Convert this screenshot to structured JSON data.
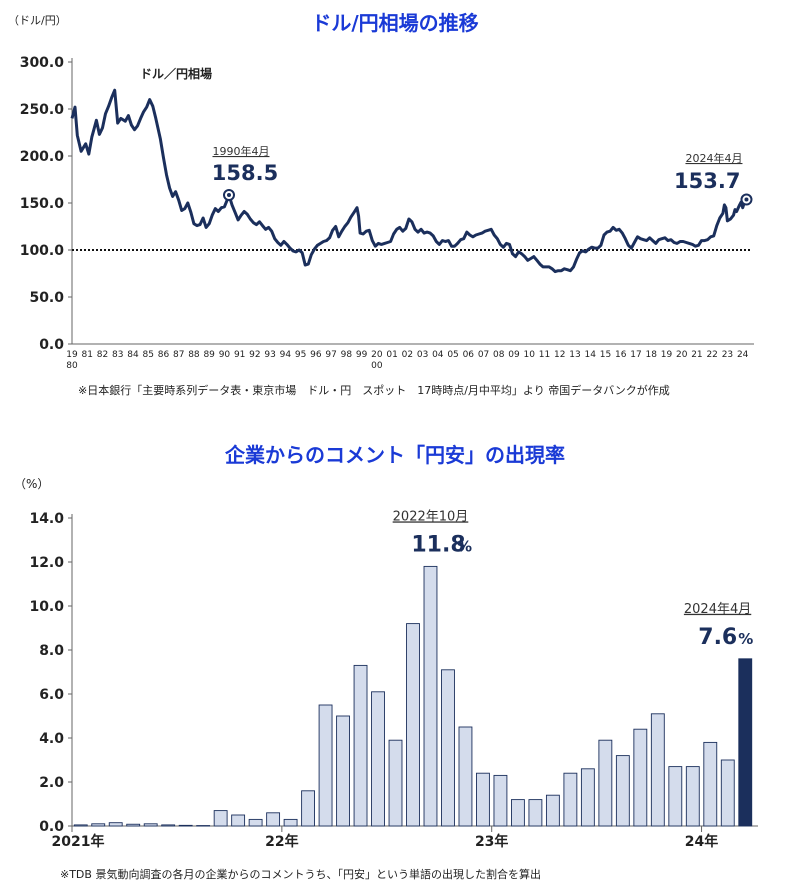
{
  "chart_data": [
    {
      "type": "line",
      "title": "ドル/円相場の推移",
      "ylabel": "（ドル/円）",
      "ylim": [
        0,
        300
      ],
      "yticks": [
        "300.0",
        "250.0",
        "200.0",
        "150.0",
        "100.0",
        "50.0",
        "0.0"
      ],
      "ytick_values": [
        300,
        250,
        200,
        150,
        100,
        50,
        0
      ],
      "xlim": [
        1980,
        2024.35
      ],
      "xticks": [
        "19\n80",
        "81",
        "82",
        "83",
        "84",
        "85",
        "86",
        "87",
        "88",
        "89",
        "90",
        "91",
        "92",
        "93",
        "94",
        "95",
        "96",
        "97",
        "98",
        "99",
        "20\n00",
        "01",
        "02",
        "03",
        "04",
        "05",
        "06",
        "07",
        "08",
        "09",
        "10",
        "11",
        "12",
        "13",
        "14",
        "15",
        "16",
        "17",
        "18",
        "19",
        "20",
        "21",
        "22",
        "23",
        "24"
      ],
      "series_label": "ドル／円相場",
      "reference_line": 100,
      "points": [
        [
          1980.0,
          240
        ],
        [
          1980.2,
          252
        ],
        [
          1980.35,
          222
        ],
        [
          1980.6,
          205
        ],
        [
          1980.9,
          213
        ],
        [
          1981.1,
          202
        ],
        [
          1981.3,
          220
        ],
        [
          1981.6,
          238
        ],
        [
          1981.8,
          223
        ],
        [
          1982.0,
          230
        ],
        [
          1982.2,
          245
        ],
        [
          1982.4,
          253
        ],
        [
          1982.6,
          262
        ],
        [
          1982.8,
          270
        ],
        [
          1983.0,
          235
        ],
        [
          1983.2,
          240
        ],
        [
          1983.5,
          237
        ],
        [
          1983.7,
          243
        ],
        [
          1983.9,
          233
        ],
        [
          1984.1,
          228
        ],
        [
          1984.3,
          232
        ],
        [
          1984.5,
          240
        ],
        [
          1984.7,
          247
        ],
        [
          1984.9,
          252
        ],
        [
          1985.1,
          260
        ],
        [
          1985.3,
          253
        ],
        [
          1985.5,
          240
        ],
        [
          1985.8,
          218
        ],
        [
          1986.0,
          198
        ],
        [
          1986.2,
          180
        ],
        [
          1986.4,
          166
        ],
        [
          1986.6,
          157
        ],
        [
          1986.8,
          162
        ],
        [
          1987.0,
          153
        ],
        [
          1987.2,
          142
        ],
        [
          1987.4,
          144
        ],
        [
          1987.6,
          150
        ],
        [
          1987.8,
          140
        ],
        [
          1988.0,
          128
        ],
        [
          1988.2,
          126
        ],
        [
          1988.4,
          127
        ],
        [
          1988.6,
          134
        ],
        [
          1988.8,
          124
        ],
        [
          1989.0,
          128
        ],
        [
          1989.2,
          137
        ],
        [
          1989.4,
          144
        ],
        [
          1989.6,
          141
        ],
        [
          1989.8,
          145
        ],
        [
          1990.0,
          146
        ],
        [
          1990.2,
          154
        ],
        [
          1990.3,
          158.5
        ],
        [
          1990.5,
          148
        ],
        [
          1990.7,
          140
        ],
        [
          1990.9,
          132
        ],
        [
          1991.1,
          137
        ],
        [
          1991.3,
          141
        ],
        [
          1991.5,
          138
        ],
        [
          1991.7,
          133
        ],
        [
          1991.9,
          129
        ],
        [
          1992.1,
          127
        ],
        [
          1992.3,
          130
        ],
        [
          1992.5,
          126
        ],
        [
          1992.7,
          122
        ],
        [
          1992.9,
          124
        ],
        [
          1993.1,
          120
        ],
        [
          1993.3,
          112
        ],
        [
          1993.5,
          108
        ],
        [
          1993.7,
          105
        ],
        [
          1993.9,
          109
        ],
        [
          1994.1,
          106
        ],
        [
          1994.3,
          102
        ],
        [
          1994.5,
          99
        ],
        [
          1994.7,
          98
        ],
        [
          1994.9,
          100
        ],
        [
          1995.1,
          97
        ],
        [
          1995.3,
          84
        ],
        [
          1995.5,
          85
        ],
        [
          1995.7,
          95
        ],
        [
          1995.9,
          101
        ],
        [
          1996.1,
          105
        ],
        [
          1996.3,
          107
        ],
        [
          1996.5,
          109
        ],
        [
          1996.7,
          110
        ],
        [
          1996.9,
          113
        ],
        [
          1997.1,
          121
        ],
        [
          1997.3,
          125
        ],
        [
          1997.5,
          114
        ],
        [
          1997.7,
          120
        ],
        [
          1997.9,
          125
        ],
        [
          1998.1,
          129
        ],
        [
          1998.3,
          135
        ],
        [
          1998.5,
          140
        ],
        [
          1998.7,
          145
        ],
        [
          1998.8,
          136
        ],
        [
          1998.9,
          118
        ],
        [
          1999.1,
          117
        ],
        [
          1999.3,
          120
        ],
        [
          1999.5,
          121
        ],
        [
          1999.7,
          110
        ],
        [
          1999.9,
          104
        ],
        [
          2000.1,
          107
        ],
        [
          2000.3,
          106
        ],
        [
          2000.5,
          107
        ],
        [
          2000.7,
          108
        ],
        [
          2000.9,
          109
        ],
        [
          2001.1,
          117
        ],
        [
          2001.3,
          122
        ],
        [
          2001.5,
          124
        ],
        [
          2001.7,
          120
        ],
        [
          2001.9,
          123
        ],
        [
          2002.1,
          133
        ],
        [
          2002.3,
          130
        ],
        [
          2002.5,
          122
        ],
        [
          2002.7,
          119
        ],
        [
          2002.9,
          122
        ],
        [
          2003.1,
          118
        ],
        [
          2003.3,
          119
        ],
        [
          2003.5,
          118
        ],
        [
          2003.7,
          115
        ],
        [
          2003.9,
          109
        ],
        [
          2004.1,
          106
        ],
        [
          2004.3,
          110
        ],
        [
          2004.5,
          109
        ],
        [
          2004.7,
          110
        ],
        [
          2004.9,
          104
        ],
        [
          2005.1,
          104
        ],
        [
          2005.3,
          107
        ],
        [
          2005.5,
          111
        ],
        [
          2005.7,
          112
        ],
        [
          2005.9,
          119
        ],
        [
          2006.1,
          116
        ],
        [
          2006.3,
          114
        ],
        [
          2006.5,
          116
        ],
        [
          2006.7,
          117
        ],
        [
          2006.9,
          118
        ],
        [
          2007.1,
          120
        ],
        [
          2007.3,
          121
        ],
        [
          2007.5,
          122
        ],
        [
          2007.7,
          116
        ],
        [
          2007.9,
          112
        ],
        [
          2008.1,
          106
        ],
        [
          2008.3,
          103
        ],
        [
          2008.5,
          107
        ],
        [
          2008.7,
          106
        ],
        [
          2008.9,
          96
        ],
        [
          2009.1,
          93
        ],
        [
          2009.3,
          98
        ],
        [
          2009.5,
          96
        ],
        [
          2009.7,
          93
        ],
        [
          2009.9,
          89
        ],
        [
          2010.1,
          91
        ],
        [
          2010.3,
          93
        ],
        [
          2010.5,
          89
        ],
        [
          2010.7,
          85
        ],
        [
          2010.9,
          82
        ],
        [
          2011.1,
          82
        ],
        [
          2011.3,
          82
        ],
        [
          2011.5,
          80
        ],
        [
          2011.7,
          77
        ],
        [
          2011.9,
          78
        ],
        [
          2012.1,
          78
        ],
        [
          2012.3,
          80
        ],
        [
          2012.5,
          79
        ],
        [
          2012.7,
          78
        ],
        [
          2012.9,
          82
        ],
        [
          2013.1,
          90
        ],
        [
          2013.3,
          97
        ],
        [
          2013.5,
          99
        ],
        [
          2013.7,
          98
        ],
        [
          2013.9,
          101
        ],
        [
          2014.1,
          103
        ],
        [
          2014.3,
          102
        ],
        [
          2014.5,
          102
        ],
        [
          2014.7,
          105
        ],
        [
          2014.9,
          116
        ],
        [
          2015.1,
          119
        ],
        [
          2015.3,
          120
        ],
        [
          2015.5,
          124
        ],
        [
          2015.7,
          121
        ],
        [
          2015.9,
          122
        ],
        [
          2016.1,
          118
        ],
        [
          2016.3,
          112
        ],
        [
          2016.5,
          105
        ],
        [
          2016.7,
          102
        ],
        [
          2016.9,
          108
        ],
        [
          2017.1,
          114
        ],
        [
          2017.3,
          112
        ],
        [
          2017.5,
          111
        ],
        [
          2017.7,
          110
        ],
        [
          2017.9,
          113
        ],
        [
          2018.1,
          110
        ],
        [
          2018.3,
          107
        ],
        [
          2018.5,
          111
        ],
        [
          2018.7,
          112
        ],
        [
          2018.9,
          113
        ],
        [
          2019.1,
          110
        ],
        [
          2019.3,
          111
        ],
        [
          2019.5,
          108
        ],
        [
          2019.7,
          107
        ],
        [
          2019.9,
          109
        ],
        [
          2020.1,
          109
        ],
        [
          2020.3,
          108
        ],
        [
          2020.5,
          107
        ],
        [
          2020.7,
          106
        ],
        [
          2020.9,
          104
        ],
        [
          2021.1,
          105
        ],
        [
          2021.3,
          110
        ],
        [
          2021.5,
          110
        ],
        [
          2021.7,
          111
        ],
        [
          2021.9,
          114
        ],
        [
          2022.1,
          115
        ],
        [
          2022.3,
          126
        ],
        [
          2022.5,
          134
        ],
        [
          2022.7,
          139
        ],
        [
          2022.8,
          148
        ],
        [
          2022.9,
          145
        ],
        [
          2023.0,
          131
        ],
        [
          2023.2,
          133
        ],
        [
          2023.4,
          137
        ],
        [
          2023.5,
          143
        ],
        [
          2023.6,
          141
        ],
        [
          2023.8,
          148
        ],
        [
          2023.9,
          151
        ],
        [
          2024.0,
          145
        ],
        [
          2024.1,
          150
        ],
        [
          2024.25,
          153.7
        ]
      ],
      "annotations": [
        {
          "label": "1990年4月",
          "value": "158.5",
          "x": 1990.3,
          "y": 158.5
        },
        {
          "label": "2024年4月",
          "value": "153.7",
          "x": 2024.25,
          "y": 153.7
        }
      ],
      "note": "※日本銀行「主要時系列データ表・東京市場　ドル・円　スポット　17時時点/月中平均」より 帝国データバンクが作成"
    },
    {
      "type": "bar",
      "title": "企業からのコメント「円安」の出現率",
      "ylabel": "（%）",
      "ylim": [
        0,
        14
      ],
      "yticks": [
        "14.0",
        "12.0",
        "10.0",
        "8.0",
        "6.0",
        "4.0",
        "2.0",
        "0.0"
      ],
      "ytick_values": [
        14,
        12,
        10,
        8,
        6,
        4,
        2,
        0
      ],
      "xtick_labels": [
        {
          "label": "2021年",
          "index": 0
        },
        {
          "label": "22年",
          "index": 12
        },
        {
          "label": "23年",
          "index": 24
        },
        {
          "label": "24年",
          "index": 36
        }
      ],
      "values": [
        0.05,
        0.1,
        0.15,
        0.08,
        0.1,
        0.05,
        0.03,
        0.02,
        0.7,
        0.5,
        0.3,
        0.6,
        0.3,
        1.6,
        5.5,
        5.0,
        7.3,
        6.1,
        3.9,
        9.2,
        11.8,
        7.1,
        4.5,
        2.4,
        2.3,
        1.2,
        1.2,
        1.4,
        2.4,
        2.6,
        3.9,
        3.2,
        4.4,
        5.1,
        2.7,
        2.7,
        3.8,
        3.0,
        7.6
      ],
      "highlight_index": 38,
      "annotations": [
        {
          "label": "2022年10月",
          "value": "11.8",
          "unit": "%",
          "index": 20
        },
        {
          "label": "2024年4月",
          "value": "7.6",
          "unit": "%",
          "index": 38
        }
      ],
      "note": "※TDB 景気動向調査の各月の企業からのコメントうち、「円安」という単語の出現した割合を算出"
    }
  ]
}
